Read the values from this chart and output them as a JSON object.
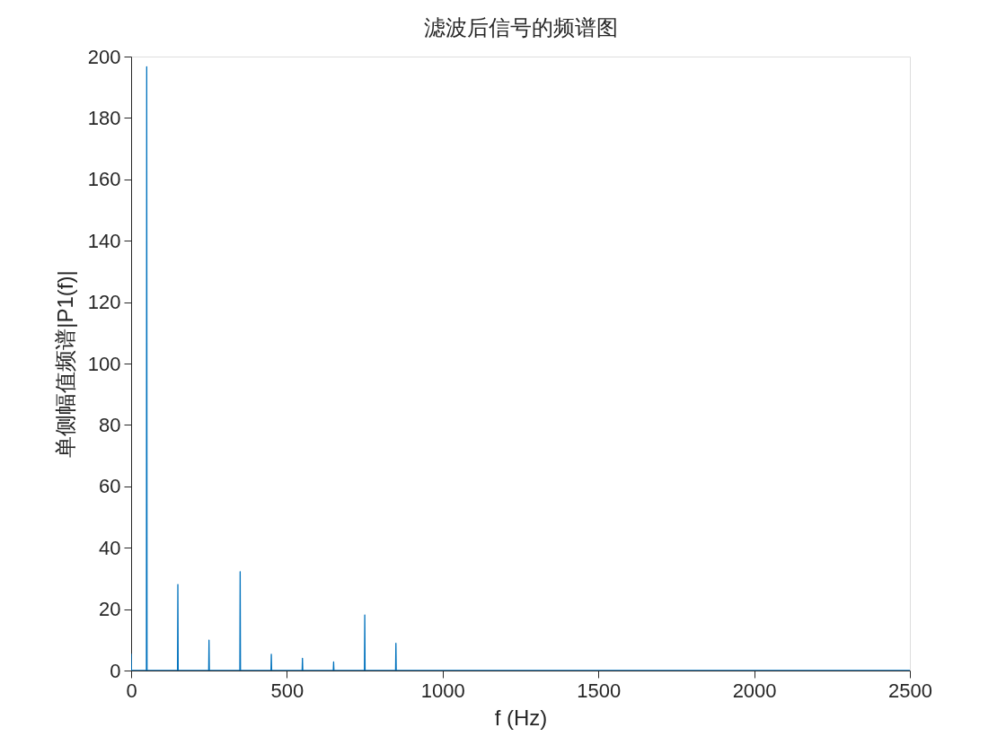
{
  "chart_data": {
    "type": "line",
    "title": "滤波后信号的频谱图",
    "xlabel": "f (Hz)",
    "ylabel": "单侧幅值频谱|P1(f)|",
    "x": [
      0,
      1,
      49,
      50,
      51,
      149,
      150,
      151,
      249,
      250,
      251,
      349,
      350,
      351,
      449,
      450,
      451,
      549,
      550,
      551,
      649,
      650,
      651,
      749,
      750,
      751,
      849,
      850,
      851,
      2500
    ],
    "series": [
      {
        "color": "#0072bd",
        "values": [
          5.4,
          0,
          0,
          196.7,
          0,
          0,
          28,
          0,
          0,
          9.9,
          0,
          0,
          32.2,
          0,
          0,
          5.3,
          0,
          0,
          4,
          0,
          0,
          2.8,
          0,
          0,
          18.1,
          0,
          0,
          8.9,
          0,
          0
        ]
      }
    ],
    "xlim": [
      0,
      2500
    ],
    "xticks": [
      0,
      500,
      1000,
      1500,
      2000,
      2500
    ],
    "ylim": [
      0,
      200
    ],
    "yticks": [
      0,
      20,
      40,
      60,
      80,
      100,
      120,
      140,
      160,
      180,
      200
    ],
    "grid": false,
    "legend": false
  }
}
